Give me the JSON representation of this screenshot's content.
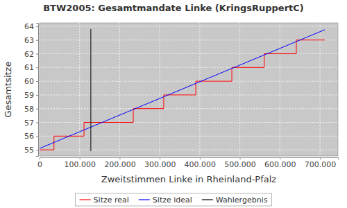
{
  "chart_data": {
    "type": "line",
    "title": "BTW2005: Gesamtmandate Linke (KringsRuppertC)",
    "x_label": "Zweitstimmen Linke in Rheinland-Pfalz",
    "y_label": "Gesamtsitze",
    "xlim": [
      0,
      745000
    ],
    "ylim": [
      54.55,
      64.25
    ],
    "xticks": [
      0,
      {
        "value": 100000,
        "label": "100.000"
      },
      {
        "value": 200000,
        "label": "200.000"
      },
      {
        "value": 300000,
        "label": "300.000"
      },
      {
        "value": 400000,
        "label": "400.000"
      },
      {
        "value": 500000,
        "label": "500.000"
      },
      {
        "value": 600000,
        "label": "600.000"
      },
      {
        "value": 700000,
        "label": "700.000"
      }
    ],
    "yticks": [
      55,
      56,
      57,
      58,
      59,
      60,
      61,
      62,
      63,
      64
    ],
    "grid": true,
    "legend": "bottom",
    "series": [
      {
        "name": "Sitze real",
        "color": "#ff0000",
        "line_style": "step",
        "x": [
          0,
          36000,
          111000,
          234000,
          310000,
          390000,
          480000,
          561000,
          641000,
          712000
        ],
        "values": [
          55,
          56,
          57,
          58,
          59,
          60,
          61,
          62,
          63,
          63
        ]
      },
      {
        "name": "Sitze ideal",
        "color": "#0000ff",
        "line_style": "solid",
        "x": [
          0,
          712000
        ],
        "values": [
          55.1,
          63.75
        ]
      },
      {
        "name": "Wahlergebnis",
        "color": "#000000",
        "line_style": "solid",
        "x": [
          128000,
          128000
        ],
        "values": [
          54.9,
          63.8
        ]
      }
    ]
  }
}
